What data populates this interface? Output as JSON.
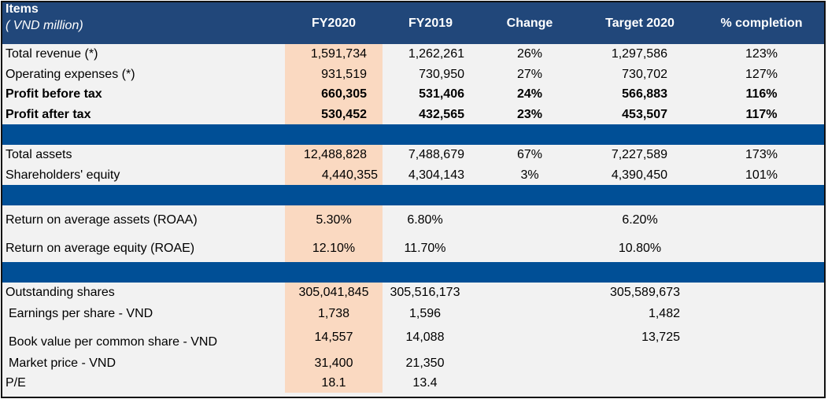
{
  "header": {
    "items": "Items",
    "unit": "( VND million)",
    "fy2020": "FY2020",
    "fy2019": "FY2019",
    "change": "Change",
    "target": "Target 2020",
    "completion": "% completion"
  },
  "colors": {
    "header_bg": "#21477a",
    "band_bg": "#004f96",
    "highlight": "#fad9c1",
    "row_bg": "#f2f2f2"
  },
  "income": [
    {
      "label": "Total revenue (*)",
      "fy2020": "1,591,734",
      "fy2019": "1,262,261",
      "change": "26%",
      "target": "1,297,586",
      "completion": "123%"
    },
    {
      "label": "Operating expenses (*)",
      "fy2020": "931,519",
      "fy2019": "730,950",
      "change": "27%",
      "target": "730,702",
      "completion": "127%"
    },
    {
      "label": "Profit before tax",
      "fy2020": "660,305",
      "fy2019": "531,406",
      "change": "24%",
      "target": "566,883",
      "completion": "116%"
    },
    {
      "label": "Profit after tax",
      "fy2020": "530,452",
      "fy2019": "432,565",
      "change": "23%",
      "target": "453,507",
      "completion": "117%"
    }
  ],
  "balance": [
    {
      "label": "Total assets",
      "fy2020": "12,488,828",
      "fy2019": "7,488,679",
      "change": "67%",
      "target": "7,227,589",
      "completion": "173%"
    },
    {
      "label": "Shareholders' equity",
      "fy2020": "4,440,355",
      "fy2019": "4,304,143",
      "change": "3%",
      "target": "4,390,450",
      "completion": "101%"
    }
  ],
  "ratios": [
    {
      "label": "Return on average assets (ROAA)",
      "fy2020": "5.30%",
      "fy2019": "6.80%",
      "target": "6.20%"
    },
    {
      "label": "Return on average equity (ROAE)",
      "fy2020": "12.10%",
      "fy2019": "11.70%",
      "target": "10.80%"
    }
  ],
  "shares": [
    {
      "label": "Outstanding shares",
      "fy2020": "305,041,845",
      "fy2019": "305,516,173",
      "target": "305,589,673"
    },
    {
      "label": " Earnings per share - VND",
      "fy2020": "1,738",
      "fy2019": "1,596",
      "target": "1,482"
    },
    {
      "label": " Book value per common share - VND",
      "fy2020": "14,557",
      "fy2019": "14,088",
      "target": "13,725"
    },
    {
      "label": " Market price - VND",
      "fy2020": "31,400",
      "fy2019": "21,350"
    },
    {
      "label": "P/E",
      "fy2020": "18.1",
      "fy2019": "13.4"
    }
  ]
}
